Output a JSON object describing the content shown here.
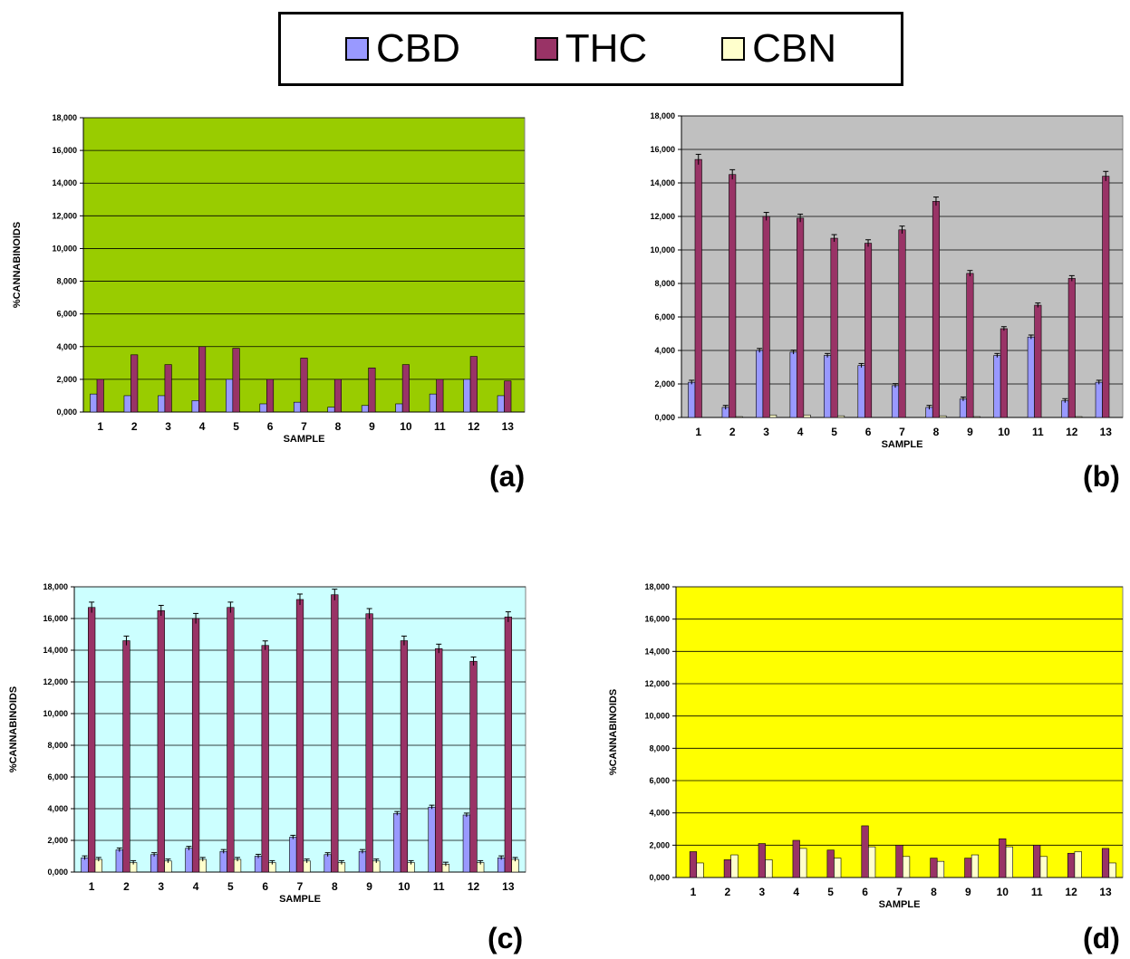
{
  "legend": {
    "items": [
      {
        "label": "CBD",
        "color": "#9999ff"
      },
      {
        "label": "THC",
        "color": "#993366"
      },
      {
        "label": "CBN",
        "color": "#ffffcc"
      }
    ]
  },
  "chart_data": [
    {
      "type": "bar",
      "panel_label": "(a)",
      "background": "#99cc00",
      "xlabel": "SAMPLE",
      "ylabel": "%CANNABINOIDS",
      "ylim": [
        0,
        18
      ],
      "y_ticks": [
        "0,000",
        "2,000",
        "4,000",
        "6,000",
        "8,000",
        "10,000",
        "12,000",
        "14,000",
        "16,000",
        "18,000"
      ],
      "grid": true,
      "error_bars": false,
      "categories": [
        "1",
        "2",
        "3",
        "4",
        "5",
        "6",
        "7",
        "8",
        "9",
        "10",
        "11",
        "12",
        "13"
      ],
      "series": [
        {
          "name": "CBD",
          "values": [
            1.1,
            1.0,
            1.0,
            0.7,
            2.0,
            0.5,
            0.6,
            0.3,
            0.4,
            0.5,
            1.1,
            2.0,
            1.0
          ]
        },
        {
          "name": "THC",
          "values": [
            2.0,
            3.5,
            2.9,
            4.0,
            3.9,
            2.0,
            3.3,
            2.0,
            2.7,
            2.9,
            2.0,
            3.4,
            1.9
          ]
        },
        {
          "name": "CBN",
          "values": [
            0,
            0,
            0,
            0,
            0,
            0,
            0,
            0,
            0,
            0,
            0,
            0,
            0
          ]
        }
      ]
    },
    {
      "type": "bar",
      "panel_label": "(b)",
      "background": "#c0c0c0",
      "xlabel": "SAMPLE",
      "ylabel": "",
      "ylim": [
        0,
        18
      ],
      "y_ticks": [
        "0,000",
        "2,000",
        "4,000",
        "6,000",
        "8,000",
        "10,000",
        "12,000",
        "14,000",
        "16,000",
        "18,000"
      ],
      "grid": true,
      "error_bars": true,
      "categories": [
        "1",
        "2",
        "3",
        "4",
        "5",
        "6",
        "7",
        "8",
        "9",
        "10",
        "11",
        "12",
        "13"
      ],
      "series": [
        {
          "name": "CBD",
          "values": [
            2.1,
            0.6,
            4.0,
            3.9,
            3.7,
            3.1,
            1.9,
            0.6,
            1.1,
            3.7,
            4.8,
            1.0,
            2.1
          ]
        },
        {
          "name": "THC",
          "values": [
            15.4,
            14.5,
            12.0,
            11.9,
            10.7,
            10.4,
            11.2,
            12.9,
            8.6,
            5.3,
            6.7,
            8.3,
            14.4
          ]
        },
        {
          "name": "CBN",
          "values": [
            0,
            0.05,
            0.15,
            0.15,
            0.1,
            0,
            0,
            0.1,
            0.05,
            0,
            0,
            0.05,
            0
          ]
        }
      ]
    },
    {
      "type": "bar",
      "panel_label": "(c)",
      "background": "#ccffff",
      "xlabel": "SAMPLE",
      "ylabel": "%CANNABINOIDS",
      "ylim": [
        0,
        18
      ],
      "y_ticks": [
        "0,000",
        "2,000",
        "4,000",
        "6,000",
        "8,000",
        "10,000",
        "12,000",
        "14,000",
        "16,000",
        "18,000"
      ],
      "grid": true,
      "error_bars": true,
      "categories": [
        "1",
        "2",
        "3",
        "4",
        "5",
        "6",
        "7",
        "8",
        "9",
        "10",
        "11",
        "12",
        "13"
      ],
      "series": [
        {
          "name": "CBD",
          "values": [
            0.9,
            1.4,
            1.1,
            1.5,
            1.3,
            1.0,
            2.2,
            1.1,
            1.3,
            3.7,
            4.1,
            3.6,
            0.9
          ]
        },
        {
          "name": "THC",
          "values": [
            16.7,
            14.6,
            16.5,
            16.0,
            16.7,
            14.3,
            17.2,
            17.5,
            16.3,
            14.6,
            14.1,
            13.3,
            16.1
          ]
        },
        {
          "name": "CBN",
          "values": [
            0.8,
            0.6,
            0.7,
            0.8,
            0.8,
            0.6,
            0.7,
            0.6,
            0.7,
            0.6,
            0.5,
            0.6,
            0.8
          ]
        }
      ]
    },
    {
      "type": "bar",
      "panel_label": "(d)",
      "background": "#ffff00",
      "xlabel": "SAMPLE",
      "ylabel": "%CANNABINOIDS",
      "ylim": [
        0,
        18
      ],
      "y_ticks": [
        "0,000",
        "2,000",
        "4,000",
        "6,000",
        "8,000",
        "10,000",
        "12,000",
        "14,000",
        "16,000",
        "18,000"
      ],
      "grid": true,
      "error_bars": false,
      "categories": [
        "1",
        "2",
        "3",
        "4",
        "5",
        "6",
        "7",
        "8",
        "9",
        "10",
        "11",
        "12",
        "13"
      ],
      "series": [
        {
          "name": "CBD",
          "values": [
            0,
            0,
            0,
            0,
            0,
            0,
            0,
            0,
            0,
            0,
            0,
            0,
            0
          ]
        },
        {
          "name": "THC",
          "values": [
            1.6,
            1.1,
            2.1,
            2.3,
            1.7,
            3.2,
            2.0,
            1.2,
            1.2,
            2.4,
            2.0,
            1.5,
            1.8
          ]
        },
        {
          "name": "CBN",
          "values": [
            0.9,
            1.4,
            1.1,
            1.8,
            1.2,
            1.9,
            1.3,
            1.0,
            1.4,
            1.9,
            1.3,
            1.6,
            0.9
          ]
        }
      ]
    }
  ]
}
